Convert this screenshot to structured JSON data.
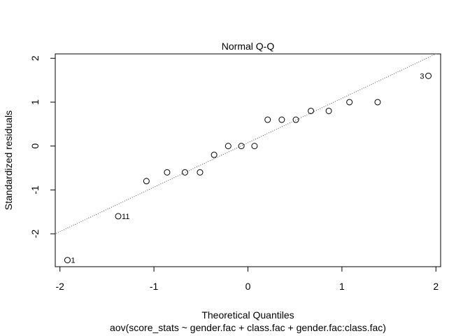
{
  "chart_data": {
    "type": "scatter",
    "title": "Normal Q-Q",
    "xlabel": "Theoretical Quantiles",
    "ylabel": "Standardized residuals",
    "caption": "aov(score_stats ~ gender.fac + class.fac + gender.fac:class.fac)",
    "xlim": [
      -2.05,
      2.05
    ],
    "ylim": [
      -2.75,
      2.1
    ],
    "x_ticks": [
      -2,
      -1,
      0,
      1,
      2
    ],
    "x_tick_labels": [
      "-2",
      "-1",
      "0",
      "1",
      "2"
    ],
    "y_ticks": [
      -2,
      -1,
      0,
      1,
      2
    ],
    "y_tick_labels": [
      "-2",
      "-1",
      "0",
      "1",
      "2"
    ],
    "grid": false,
    "reference_line": {
      "points": [
        [
          -2,
          -1.95
        ],
        [
          2,
          2.1
        ]
      ],
      "style": "dotted",
      "color": "#555555"
    },
    "points": [
      {
        "x": -1.92,
        "y": -2.6,
        "label": "1"
      },
      {
        "x": -1.38,
        "y": -1.6,
        "label": "11"
      },
      {
        "x": -1.08,
        "y": -0.8,
        "label": ""
      },
      {
        "x": -0.86,
        "y": -0.6,
        "label": ""
      },
      {
        "x": -0.67,
        "y": -0.6,
        "label": ""
      },
      {
        "x": -0.51,
        "y": -0.6,
        "label": ""
      },
      {
        "x": -0.36,
        "y": -0.2,
        "label": ""
      },
      {
        "x": -0.21,
        "y": 0.0,
        "label": ""
      },
      {
        "x": -0.07,
        "y": 0.0,
        "label": ""
      },
      {
        "x": 0.07,
        "y": 0.0,
        "label": ""
      },
      {
        "x": 0.21,
        "y": 0.6,
        "label": ""
      },
      {
        "x": 0.36,
        "y": 0.6,
        "label": ""
      },
      {
        "x": 0.51,
        "y": 0.6,
        "label": ""
      },
      {
        "x": 0.67,
        "y": 0.8,
        "label": ""
      },
      {
        "x": 0.86,
        "y": 0.8,
        "label": ""
      },
      {
        "x": 1.08,
        "y": 1.0,
        "label": ""
      },
      {
        "x": 1.38,
        "y": 1.0,
        "label": ""
      },
      {
        "x": 1.92,
        "y": 1.6,
        "label": "3"
      }
    ]
  }
}
